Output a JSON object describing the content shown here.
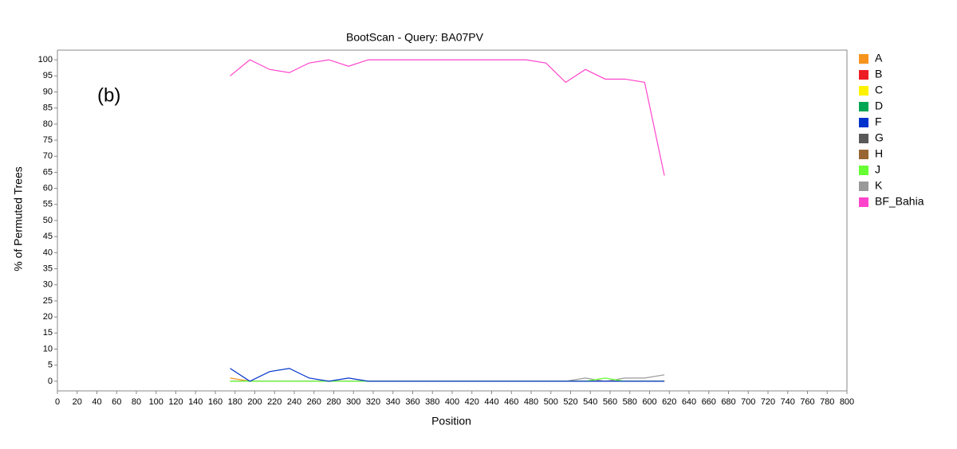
{
  "chart_data": {
    "type": "line",
    "title": "BootScan - Query: BA07PV",
    "x_label": "Position",
    "y_label": "% of Permuted Trees",
    "annotation": "(b)",
    "x": [
      175,
      195,
      215,
      235,
      255,
      275,
      295,
      315,
      335,
      355,
      375,
      395,
      415,
      435,
      455,
      475,
      495,
      515,
      535,
      555,
      575,
      595,
      615
    ],
    "series": [
      {
        "name": "A",
        "color": "#f7941d",
        "values": [
          1,
          0,
          0,
          0,
          0,
          0,
          0,
          0,
          0,
          0,
          0,
          0,
          0,
          0,
          0,
          0,
          0,
          0,
          0,
          0,
          0,
          0,
          0
        ]
      },
      {
        "name": "B",
        "color": "#ed1c24",
        "values": [
          0,
          0,
          0,
          0,
          0,
          0,
          0,
          0,
          0,
          0,
          0,
          0,
          0,
          0,
          0,
          0,
          0,
          0,
          0,
          0,
          0,
          0,
          0
        ]
      },
      {
        "name": "C",
        "color": "#fff200",
        "values": [
          0,
          0,
          0,
          0,
          0,
          0,
          0,
          0,
          0,
          0,
          0,
          0,
          0,
          0,
          0,
          0,
          0,
          0,
          0,
          0,
          0,
          0,
          0
        ]
      },
      {
        "name": "D",
        "color": "#00a651",
        "values": [
          0,
          0,
          0,
          0,
          0,
          0,
          0,
          0,
          0,
          0,
          0,
          0,
          0,
          0,
          0,
          0,
          0,
          0,
          0,
          0,
          0,
          0,
          0
        ]
      },
      {
        "name": "G",
        "color": "#595959",
        "values": [
          0,
          0,
          0,
          0,
          0,
          0,
          0,
          0,
          0,
          0,
          0,
          0,
          0,
          0,
          0,
          0,
          0,
          0,
          0,
          0,
          0,
          0,
          0
        ]
      },
      {
        "name": "H",
        "color": "#996633",
        "values": [
          0,
          0,
          0,
          0,
          0,
          0,
          0,
          0,
          0,
          0,
          0,
          0,
          0,
          0,
          0,
          0,
          0,
          0,
          0,
          0,
          0,
          0,
          0
        ]
      },
      {
        "name": "K",
        "color": "#999999",
        "values": [
          0,
          0,
          0,
          0,
          0,
          0,
          0,
          0,
          0,
          0,
          0,
          0,
          0,
          0,
          0,
          0,
          0,
          0,
          1,
          0,
          1,
          1,
          2
        ]
      },
      {
        "name": "J",
        "color": "#66ff33",
        "values": [
          0,
          0,
          0,
          0,
          0,
          0,
          0,
          0,
          0,
          0,
          0,
          0,
          0,
          0,
          0,
          0,
          0,
          0,
          0,
          1,
          0,
          0,
          0
        ]
      },
      {
        "name": "F",
        "color": "#0033cc",
        "values": [
          4,
          0,
          3,
          4,
          1,
          0,
          1,
          0,
          0,
          0,
          0,
          0,
          0,
          0,
          0,
          0,
          0,
          0,
          0,
          0,
          0,
          0,
          0
        ]
      },
      {
        "name": "BF_Bahia",
        "color": "#ff44cc",
        "values": [
          95,
          100,
          97,
          96,
          99,
          100,
          98,
          100,
          100,
          100,
          100,
          100,
          100,
          100,
          100,
          100,
          99,
          93,
          97,
          94,
          94,
          93,
          64
        ]
      }
    ],
    "legend_order": [
      "A",
      "B",
      "C",
      "D",
      "F",
      "G",
      "H",
      "J",
      "K",
      "BF_Bahia"
    ],
    "xlim": [
      0,
      800
    ],
    "xticks": [
      0,
      20,
      40,
      60,
      80,
      100,
      120,
      140,
      160,
      180,
      200,
      220,
      240,
      260,
      280,
      300,
      320,
      340,
      360,
      380,
      400,
      420,
      440,
      460,
      480,
      500,
      520,
      540,
      560,
      580,
      600,
      620,
      640,
      660,
      680,
      700,
      720,
      740,
      760,
      780,
      800
    ],
    "ylim": [
      -3,
      103
    ],
    "yticks": [
      0,
      5,
      10,
      15,
      20,
      25,
      30,
      35,
      40,
      45,
      50,
      55,
      60,
      65,
      70,
      75,
      80,
      85,
      90,
      95,
      100
    ]
  }
}
